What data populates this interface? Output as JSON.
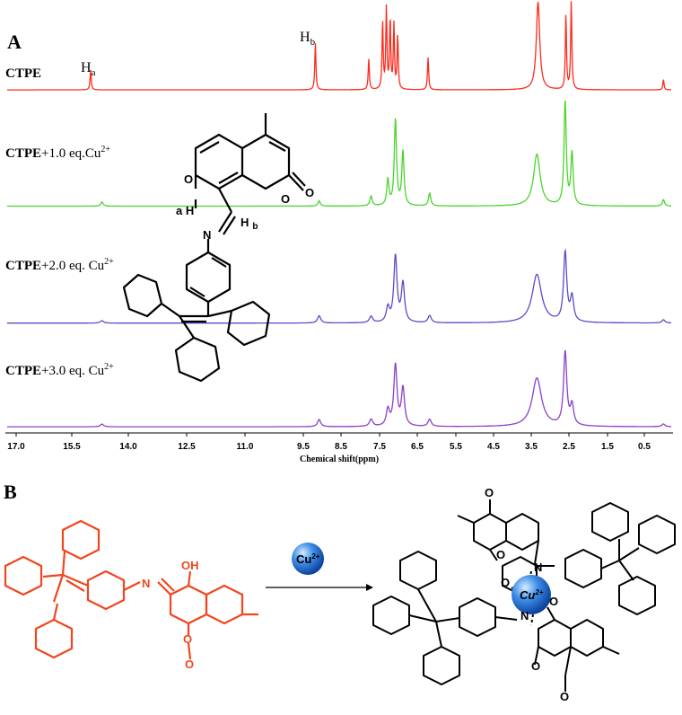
{
  "panel_a": {
    "letter": "A",
    "peak_labels": {
      "ha": "H",
      "ha_sub": "a",
      "hb": "H",
      "hb_sub": "b"
    },
    "spectra_labels": [
      {
        "bold": "CTPE",
        "rest": ""
      },
      {
        "bold": "CTPE",
        "rest": "+1.0 eq.Cu",
        "sup": "2+"
      },
      {
        "bold": "CTPE",
        "rest": "+2.0 eq. Cu",
        "sup": "2+"
      },
      {
        "bold": "CTPE",
        "rest": "+3.0 eq. Cu",
        "sup": "2+"
      }
    ],
    "structure_atoms": {
      "o_ring": "O",
      "o_carbonyl": "O",
      "o_hydroxyl": "O",
      "h_a": "a H",
      "n": "N",
      "h_b": "H",
      "h_b_sub": "b"
    }
  },
  "panel_b": {
    "letter": "B",
    "reactant_atoms": {
      "oh": "OH",
      "n": "N",
      "o_ring": "O",
      "o_carbonyl": "O"
    },
    "reagent": "Cu",
    "reagent_sup": "2+",
    "complex_atoms": {
      "cu": "Cu",
      "cu_sup": "2+",
      "n1": "N",
      "n2": "N",
      "o1": "O",
      "o2": "O",
      "o3": "O",
      "o4": "O",
      "o5": "O",
      "o6": "O"
    }
  },
  "chart_data": {
    "type": "line",
    "xlabel": "Chemical shift(ppm)",
    "x_ticks": [
      "17.0",
      "15.5",
      "14.0",
      "12.5",
      "11.0",
      "9.5",
      "8.5",
      "7.5",
      "6.5",
      "5.5",
      "4.5",
      "3.5",
      "2.5",
      "1.5",
      "0.5"
    ],
    "x_tick_positions_ppm": [
      17.0,
      15.5,
      14.0,
      12.5,
      11.0,
      9.5,
      8.5,
      7.5,
      6.5,
      5.5,
      4.5,
      3.5,
      2.5,
      1.5,
      0.5
    ],
    "xlim": [
      17.0,
      -0.5
    ],
    "series": [
      {
        "name": "CTPE",
        "color": "#ff2a1a",
        "peaks": [
          [
            15.0,
            0.22
          ],
          [
            9.18,
            0.52
          ],
          [
            7.78,
            0.34
          ],
          [
            7.42,
            0.75
          ],
          [
            7.32,
            0.9
          ],
          [
            7.22,
            0.78
          ],
          [
            7.12,
            0.72
          ],
          [
            7.02,
            0.6
          ],
          [
            6.22,
            0.36
          ],
          [
            3.32,
            0.98
          ],
          [
            2.58,
            0.84
          ],
          [
            2.44,
            0.98
          ],
          [
            -0.02,
            0.12
          ]
        ]
      },
      {
        "name": "CTPE+1.0 eq.Cu2+",
        "color": "#49d52b",
        "peaks": [
          [
            14.7,
            0.04
          ],
          [
            9.08,
            0.05
          ],
          [
            7.72,
            0.09
          ],
          [
            7.28,
            0.24
          ],
          [
            7.08,
            0.8
          ],
          [
            6.88,
            0.5
          ],
          [
            6.18,
            0.12
          ],
          [
            3.35,
            0.48
          ],
          [
            2.6,
            0.97
          ],
          [
            2.42,
            0.48
          ],
          [
            -0.02,
            0.06
          ]
        ]
      },
      {
        "name": "CTPE+2.0 eq. Cu2+",
        "color": "#5a4cc8",
        "peaks": [
          [
            14.7,
            0.03
          ],
          [
            9.08,
            0.09
          ],
          [
            7.72,
            0.08
          ],
          [
            7.28,
            0.18
          ],
          [
            7.08,
            0.82
          ],
          [
            6.88,
            0.48
          ],
          [
            6.18,
            0.09
          ],
          [
            3.35,
            0.6
          ],
          [
            2.6,
            0.86
          ],
          [
            2.42,
            0.3
          ],
          [
            -0.02,
            0.04
          ]
        ]
      },
      {
        "name": "CTPE+3.0 eq. Cu2+",
        "color": "#8a40c8",
        "peaks": [
          [
            14.7,
            0.03
          ],
          [
            9.08,
            0.08
          ],
          [
            7.72,
            0.08
          ],
          [
            7.28,
            0.18
          ],
          [
            7.08,
            0.68
          ],
          [
            6.88,
            0.42
          ],
          [
            6.18,
            0.08
          ],
          [
            3.35,
            0.54
          ],
          [
            2.6,
            0.82
          ],
          [
            2.42,
            0.22
          ],
          [
            -0.02,
            0.03
          ]
        ]
      }
    ],
    "baselines_fraction_top": [
      0.1257,
      0.2883,
      0.4519,
      0.5969
    ]
  }
}
